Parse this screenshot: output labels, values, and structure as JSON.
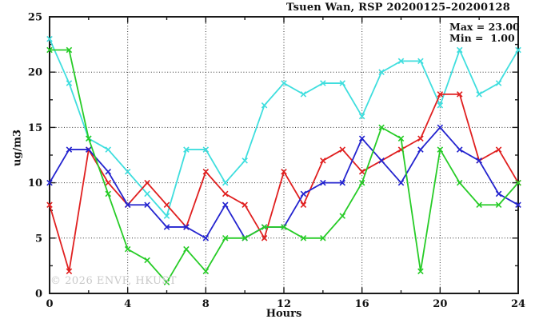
{
  "header": {
    "title": "Tsuen Wan, RSP 20200125–20200128"
  },
  "stats": {
    "max_label": "Max = 23.00",
    "min_label": "Min =  1.00"
  },
  "watermark": "© 2026 ENVF, HKUST",
  "chart_data": {
    "type": "line",
    "title": "Tsuen Wan, RSP 20200125–20200128",
    "xlabel": "Hours",
    "ylabel": "ug/m3",
    "xlim": [
      0,
      24
    ],
    "ylim": [
      0,
      25
    ],
    "grid": "dotted",
    "legend": "none",
    "x_major_ticks": [
      0,
      4,
      8,
      12,
      16,
      20,
      24
    ],
    "x_minor_ticks": [
      2,
      6,
      10,
      14,
      18,
      22
    ],
    "y_major_ticks": [
      0,
      5,
      10,
      15,
      20,
      25
    ],
    "y_minor_ticks": [
      2.5,
      7.5,
      12.5,
      17.5,
      22.5
    ],
    "grid_x": [
      4,
      8,
      12,
      16,
      20
    ],
    "grid_y": [
      5,
      10,
      15,
      20
    ],
    "x": [
      0,
      1,
      2,
      3,
      4,
      5,
      6,
      7,
      8,
      9,
      10,
      11,
      12,
      13,
      14,
      15,
      16,
      17,
      18,
      19,
      20,
      21,
      22,
      23,
      24
    ],
    "series": [
      {
        "name": "cyan",
        "color": "#3fdede",
        "values": [
          23,
          19,
          14,
          13,
          11,
          9,
          7,
          13,
          13,
          10,
          12,
          17,
          19,
          18,
          19,
          19,
          16,
          20,
          21,
          21,
          17,
          22,
          18,
          19,
          22
        ]
      },
      {
        "name": "red",
        "color": "#e02020",
        "values": [
          8,
          2,
          13,
          10,
          8,
          10,
          8,
          6,
          11,
          9,
          8,
          5,
          11,
          8,
          12,
          13,
          11,
          12,
          13,
          14,
          18,
          18,
          12,
          13,
          10
        ]
      },
      {
        "name": "blue",
        "color": "#2424cf",
        "values": [
          10,
          13,
          13,
          11,
          8,
          8,
          6,
          6,
          5,
          8,
          5,
          6,
          6,
          9,
          10,
          10,
          14,
          12,
          10,
          13,
          15,
          13,
          12,
          9,
          8
        ]
      },
      {
        "name": "green",
        "color": "#27cc27",
        "values": [
          22,
          22,
          14,
          9,
          4,
          3,
          1,
          4,
          2,
          5,
          5,
          6,
          6,
          5,
          5,
          7,
          10,
          15,
          14,
          2,
          13,
          10,
          8,
          8,
          10
        ]
      }
    ],
    "annotations": [
      "Max = 23.00",
      "Min =  1.00"
    ]
  }
}
